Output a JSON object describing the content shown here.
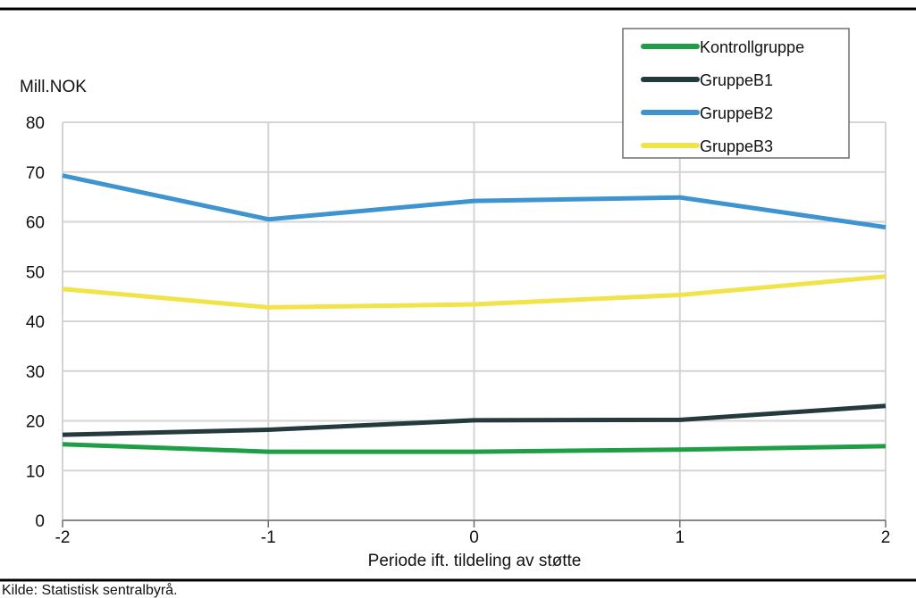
{
  "chart_data": {
    "type": "line",
    "title": "",
    "ylabel": "Mill.NOK",
    "xlabel": "Periode ift. tildeling av støtte",
    "x": [
      -2,
      -1,
      0,
      1,
      2
    ],
    "xlim": [
      -2,
      2
    ],
    "ylim": [
      0,
      80
    ],
    "yticks": [
      0,
      10,
      20,
      30,
      40,
      50,
      60,
      70,
      80
    ],
    "grid": true,
    "legend_position": "top-right",
    "series": [
      {
        "name": "Kontrollgruppe",
        "color": "#1f9e46",
        "values": [
          15.3,
          13.8,
          13.8,
          14.2,
          14.9
        ]
      },
      {
        "name": "GruppeB1",
        "color": "#243a3d",
        "values": [
          17.2,
          18.2,
          20.1,
          20.2,
          23.0
        ]
      },
      {
        "name": "GruppeB2",
        "color": "#3d94d1",
        "values": [
          69.3,
          60.5,
          64.2,
          64.9,
          58.9
        ]
      },
      {
        "name": "GruppeB3",
        "color": "#f0e44a",
        "values": [
          46.5,
          42.8,
          43.4,
          45.3,
          49.0
        ]
      }
    ]
  },
  "source": "Kilde: Statistisk sentralbyrå."
}
